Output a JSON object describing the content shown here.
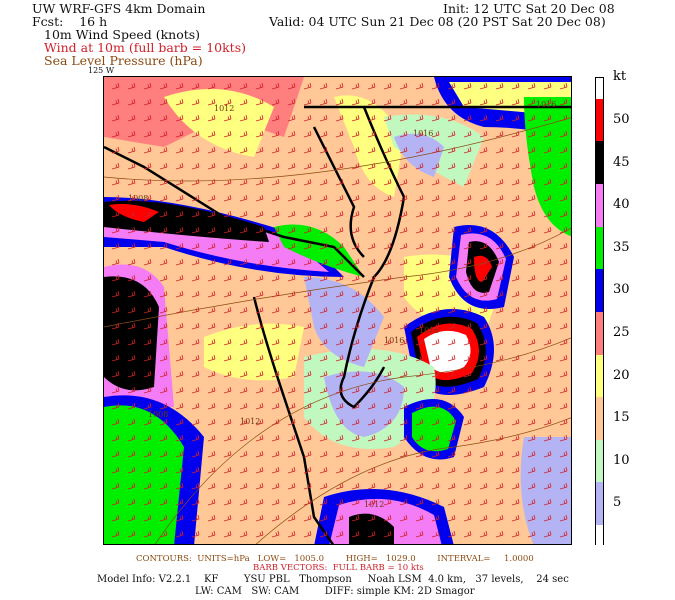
{
  "header": {
    "title": "UW WRF-GFS 4km Domain",
    "fcst": "Fcst:    16 h",
    "init": "Init: 12 UTC Sat 20 Dec 08",
    "valid": "Valid: 04 UTC Sun 21 Dec 08 (20 PST Sat 20 Dec 08)",
    "field1": "10m Wind Speed (knots)",
    "field2": "Wind at 10m (full barb = 10kts)",
    "field3": "Sea Level Pressure (hPa)",
    "lon_label": "125 W"
  },
  "colorbar": {
    "unit": "kt",
    "labels": [
      "50",
      "45",
      "40",
      "35",
      "30",
      "25",
      "20",
      "15",
      "10",
      "5"
    ],
    "colors": [
      "#ffffff",
      "#ff0000",
      "#000000",
      "#f47cf4",
      "#00ee00",
      "#0000ee",
      "#ff7f7f",
      "#ffff80",
      "#ffc896",
      "#c0f8c0",
      "#b4b4f4",
      "#ffffff"
    ]
  },
  "map": {
    "pressure_labels": [
      "1012",
      "1016",
      "1016",
      "1008",
      "1008",
      "1012",
      "1016",
      "1016",
      "1012"
    ],
    "colors": {
      "coast": "#000000",
      "barb": "#d0202a",
      "isobar": "#8a4a10"
    }
  },
  "footer": {
    "contours": "CONTOURS:  UNITS=hPa   LOW=   1005.0        HIGH=   1029.0        INTERVAL=     1.0000",
    "barbs": "BARB VECTORS:  FULL BARB = 10 kts",
    "model": "Model Info: V2.2.1    KF        YSU PBL   Thompson     Noah LSM  4.0 km,   37 levels,    24 sec",
    "physics": "LW: CAM   SW: CAM        DIFF: simple KM: 2D Smagor"
  }
}
